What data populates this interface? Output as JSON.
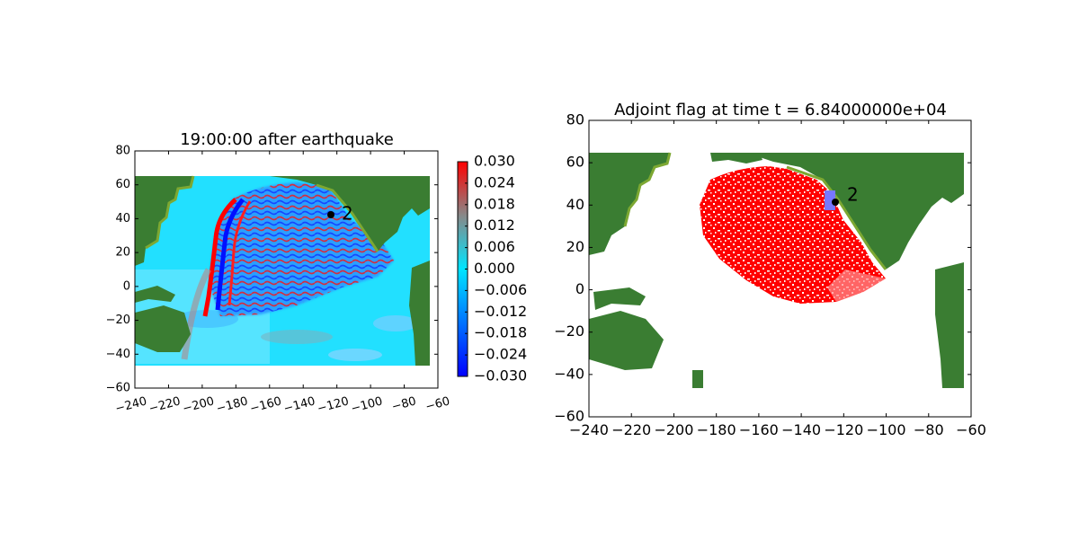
{
  "chart_data": [
    {
      "type": "heatmap",
      "title": "19:00:00 after earthquake",
      "xlabel": "",
      "ylabel": "",
      "xlim": [
        -240,
        -60
      ],
      "ylim": [
        -60,
        80
      ],
      "x_ticks": [
        -240,
        -220,
        -200,
        -180,
        -160,
        -140,
        -120,
        -100,
        -80,
        -60
      ],
      "y_ticks": [
        -60,
        -40,
        -20,
        0,
        20,
        40,
        60,
        80
      ],
      "x_tick_labels": [
        "−240",
        "−220",
        "−200",
        "−180",
        "−160",
        "−140",
        "−120",
        "−100",
        "−80",
        "−60"
      ],
      "y_tick_labels": [
        "−60",
        "−40",
        "−20",
        "0",
        "20",
        "40",
        "60",
        "80"
      ],
      "x_tick_rotation": "rotated",
      "data_extent": {
        "lon": [
          -240,
          -65
        ],
        "lat": [
          -47,
          65
        ]
      },
      "gauge": {
        "label": "2",
        "lon": -124,
        "lat": 42
      },
      "colorbar": {
        "min": -0.03,
        "max": 0.03,
        "ticks": [
          0.03,
          0.024,
          0.018,
          0.012,
          0.006,
          0.0,
          -0.006,
          -0.012,
          -0.018,
          -0.024,
          -0.03
        ],
        "tick_labels": [
          "0.030",
          "0.024",
          "0.018",
          "0.012",
          "0.006",
          "0.000",
          "−0.006",
          "−0.012",
          "−0.018",
          "−0.024",
          "−0.030"
        ],
        "colormap": [
          "#0000ff",
          "#00e5ff",
          "#888888",
          "#ff0000"
        ]
      },
      "colors": {
        "land": "#3a7d32",
        "coast": "#7da832",
        "ocean": "#22e0ff",
        "wave_pos": "#ff0000",
        "wave_neg": "#0022ff"
      }
    },
    {
      "type": "heatmap",
      "title": "Adjoint flag at time t = 6.84000000e+04",
      "xlabel": "",
      "ylabel": "",
      "xlim": [
        -240,
        -60
      ],
      "ylim": [
        -60,
        80
      ],
      "x_ticks": [
        -240,
        -220,
        -200,
        -180,
        -160,
        -140,
        -120,
        -100,
        -80,
        -60
      ],
      "y_ticks": [
        -60,
        -40,
        -20,
        0,
        20,
        40,
        60,
        80
      ],
      "x_tick_labels": [
        "−240",
        "−220",
        "−200",
        "−180",
        "−160",
        "−140",
        "−120",
        "−100",
        "−80",
        "−60"
      ],
      "y_tick_labels": [
        "−60",
        "−40",
        "−20",
        "0",
        "20",
        "40",
        "60",
        "80"
      ],
      "data_extent": {
        "lon": [
          -240,
          -65
        ],
        "lat": [
          -47,
          65
        ]
      },
      "gauge": {
        "label": "2",
        "lon": -124,
        "lat": 42
      },
      "gauge_region": {
        "lon": [
          -129,
          -124
        ],
        "lat": [
          38,
          46
        ]
      },
      "colors": {
        "land": "#3a7d32",
        "coast": "#7da832",
        "flag": "#ff0000",
        "region": "#7777ff",
        "background": "#ffffff"
      }
    }
  ]
}
